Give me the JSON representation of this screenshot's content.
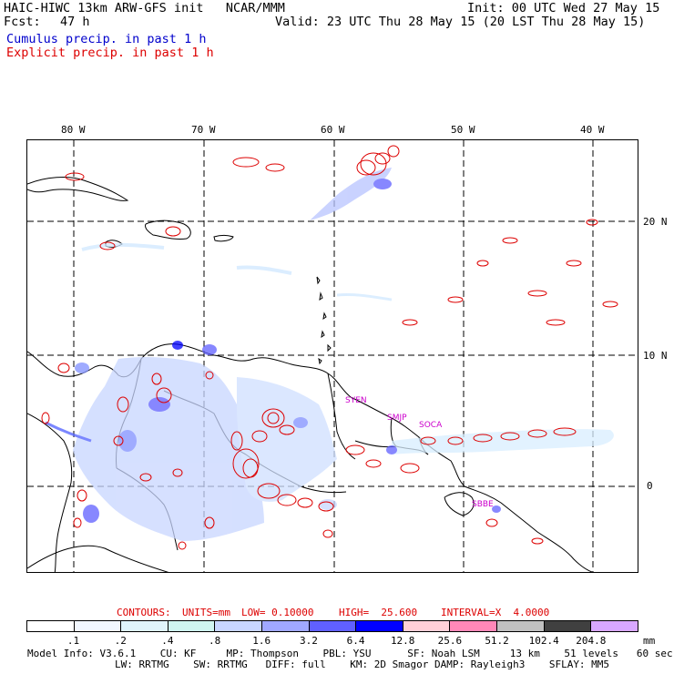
{
  "header": {
    "model_line": "HAIC-HIWC 13km ARW-GFS init   NCAR/MMM",
    "fcst_label": "Fcst:",
    "fcst_value": "47 h",
    "init_line": "Init: 00 UTC Wed 27 May 15",
    "valid_line": "Valid: 23 UTC Thu 28 May 15 (20 LST Thu 28 May 15)",
    "legend_cumulus": "Cumulus precip. in past 1 h",
    "legend_explicit": "Explicit precip. in past 1 h"
  },
  "colors": {
    "cumulus": "#0000cc",
    "explicit": "#dd0000",
    "station": "#cc00cc"
  },
  "map": {
    "lon_labels": [
      "80 W",
      "70 W",
      "60 W",
      "50 W",
      "40 W"
    ],
    "lat_labels": [
      "20 N",
      "10 N",
      "0"
    ],
    "stations": [
      "SYEN",
      "SMJP",
      "SOCA",
      "SBBE"
    ]
  },
  "contours_info": {
    "label": "CONTOURS:",
    "units": "UNITS=mm",
    "low": "LOW= 0.10000",
    "high": "HIGH=  25.600",
    "interval": "INTERVAL=X  4.0000"
  },
  "colorbar": {
    "labels": [
      ".1",
      ".2",
      ".4",
      ".8",
      "1.6",
      "3.2",
      "6.4",
      "12.8",
      "25.6",
      "51.2",
      "102.4",
      "204.8"
    ],
    "unit": "mm",
    "colors": [
      "#ffffff",
      "#f2f7ff",
      "#e0f4fb",
      "#d0f5f0",
      "#c8d6ff",
      "#a0a8ff",
      "#6060ff",
      "#0000ff",
      "#ffd0d8",
      "#ff88b8",
      "#c0c0c0",
      "#404040",
      "#d8a8ff"
    ]
  },
  "footer": {
    "line1": "Model Info: V3.6.1    CU: KF     MP: Thompson    PBL: YSU      SF: Noah LSM     13 km    51 levels   60 sec",
    "line2": "LW: RRTMG    SW: RRTMG   DIFF: full    KM: 2D Smagor DAMP: Rayleigh3    SFLAY: MM5"
  }
}
